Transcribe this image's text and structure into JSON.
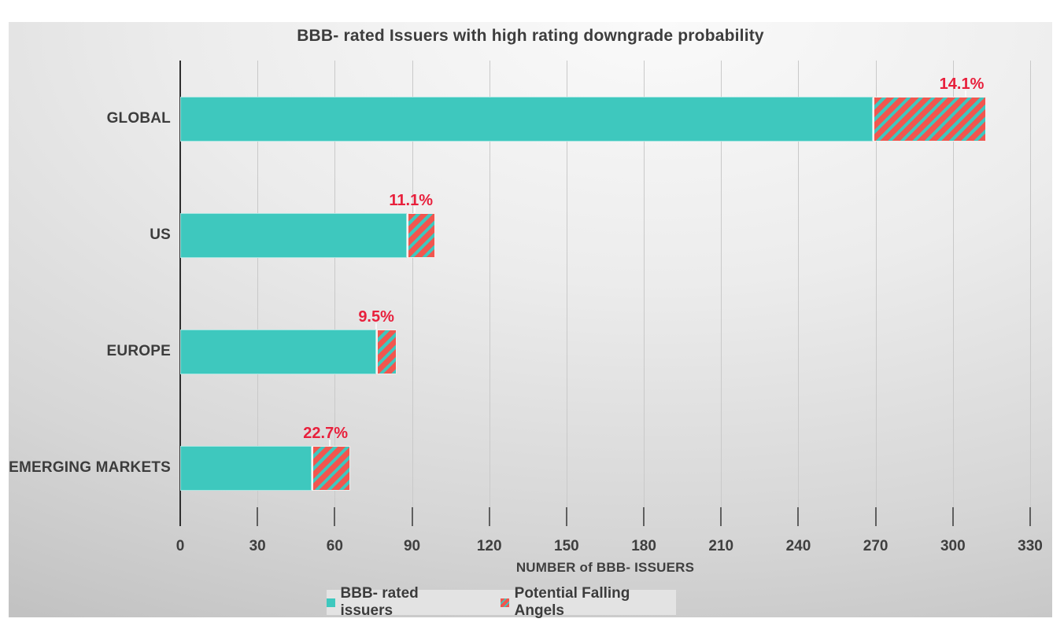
{
  "title": "BBB- rated Issuers with high rating downgrade probability",
  "chart_data": {
    "type": "bar",
    "orientation": "horizontal",
    "title": "BBB- rated Issuers with high rating downgrade probability",
    "categories": [
      "GLOBAL",
      "US",
      "EUROPE",
      "EMERGING MARKETS"
    ],
    "series": [
      {
        "name": "BBB- rated issuers",
        "values": [
          269,
          88,
          76,
          51
        ],
        "color": "#3ec8be",
        "style": "solid"
      },
      {
        "name": "Potential Falling Angels",
        "values": [
          44,
          11,
          8,
          15
        ],
        "color": "#f1564f",
        "style": "hatched",
        "hatch_background": "#3ec8be"
      }
    ],
    "bar_labels": [
      "14.1%",
      "11.1%",
      "9.5%",
      "22.7%"
    ],
    "falling_angel_pct": [
      14.1,
      11.1,
      9.5,
      22.7
    ],
    "bar_label_color": "#e8203c",
    "xlabel": "NUMBER of BBB- ISSUERS",
    "xlim": [
      0,
      330
    ],
    "x_ticks": [
      0,
      30,
      60,
      90,
      120,
      150,
      180,
      210,
      240,
      270,
      300,
      330
    ],
    "grid": true,
    "legend_position": "bottom"
  }
}
